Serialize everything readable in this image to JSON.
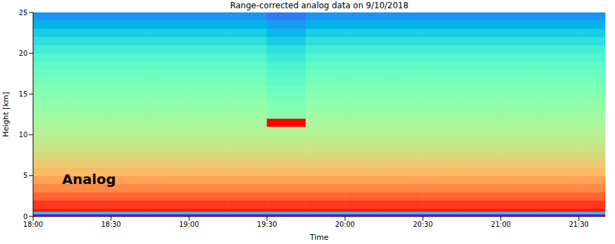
{
  "chart_data": {
    "type": "heatmap",
    "title": "Range-corrected analog data on 9/10/2018",
    "x_label": "Time",
    "y_label": "Height [km]",
    "annotation": "Analog",
    "xlim": [
      18,
      21.67
    ],
    "xticks": [
      {
        "value": 18,
        "label": "18:00"
      },
      {
        "value": 18.5,
        "label": "18:30"
      },
      {
        "value": 19,
        "label": "19:00"
      },
      {
        "value": 19.5,
        "label": "19:30"
      },
      {
        "value": 20,
        "label": "20:00"
      },
      {
        "value": 20.5,
        "label": "20:30"
      },
      {
        "value": 21,
        "label": "21:00"
      },
      {
        "value": 21.5,
        "label": "21:30"
      }
    ],
    "ylim": [
      0,
      25
    ],
    "yticks": [
      0,
      5,
      10,
      15,
      20,
      25
    ],
    "grid": false,
    "zlim": [
      0,
      1
    ],
    "x_edges": [
      18,
      18.25,
      18.5,
      18.75,
      19,
      19.25,
      19.5,
      19.75,
      20,
      20.25,
      20.5,
      20.75,
      21,
      21.25,
      21.5,
      21.67
    ],
    "y_edges": [
      0,
      0.3,
      0.6,
      1,
      2,
      3,
      4,
      5,
      6,
      7,
      8,
      9,
      10,
      11,
      12,
      13,
      14,
      15,
      16,
      17,
      18,
      19,
      20,
      21,
      22,
      23,
      24,
      25
    ],
    "cells": [
      [
        0,
        0,
        0,
        0,
        0,
        0,
        0,
        0,
        0,
        0,
        0,
        0,
        0,
        0,
        0
      ],
      [
        0.3,
        0.3,
        0.3,
        0.3,
        0.3,
        0.3,
        0.3,
        0.3,
        0.3,
        0.3,
        0.3,
        0.3,
        0.3,
        0.3,
        0.3
      ],
      [
        0.97,
        0.97,
        0.97,
        0.97,
        0.97,
        0.97,
        0.97,
        0.97,
        0.97,
        0.97,
        0.97,
        0.97,
        0.97,
        0.97,
        0.97
      ],
      [
        0.93,
        0.93,
        0.93,
        0.93,
        0.93,
        0.93,
        0.93,
        0.93,
        0.93,
        0.93,
        0.93,
        0.93,
        0.93,
        0.93,
        0.93
      ],
      [
        0.87,
        0.87,
        0.87,
        0.87,
        0.87,
        0.87,
        0.87,
        0.87,
        0.87,
        0.87,
        0.87,
        0.87,
        0.87,
        0.87,
        0.87
      ],
      [
        0.82,
        0.82,
        0.82,
        0.82,
        0.82,
        0.82,
        0.82,
        0.82,
        0.82,
        0.82,
        0.82,
        0.82,
        0.82,
        0.82,
        0.82
      ],
      [
        0.78,
        0.78,
        0.78,
        0.78,
        0.78,
        0.78,
        0.78,
        0.78,
        0.78,
        0.78,
        0.78,
        0.78,
        0.78,
        0.78,
        0.78
      ],
      [
        0.74,
        0.74,
        0.74,
        0.74,
        0.74,
        0.74,
        0.74,
        0.74,
        0.74,
        0.74,
        0.74,
        0.74,
        0.74,
        0.74,
        0.74
      ],
      [
        0.71,
        0.71,
        0.71,
        0.71,
        0.71,
        0.71,
        0.71,
        0.71,
        0.71,
        0.71,
        0.71,
        0.71,
        0.71,
        0.71,
        0.71
      ],
      [
        0.68,
        0.68,
        0.68,
        0.68,
        0.68,
        0.68,
        0.68,
        0.68,
        0.68,
        0.68,
        0.68,
        0.68,
        0.68,
        0.68,
        0.68
      ],
      [
        0.65,
        0.65,
        0.65,
        0.65,
        0.65,
        0.65,
        0.65,
        0.65,
        0.65,
        0.65,
        0.65,
        0.65,
        0.65,
        0.65,
        0.65
      ],
      [
        0.62,
        0.62,
        0.62,
        0.62,
        0.62,
        0.62,
        0.62,
        0.62,
        0.62,
        0.62,
        0.62,
        0.62,
        0.62,
        0.62,
        0.62
      ],
      [
        0.6,
        0.6,
        0.6,
        0.6,
        0.6,
        0.6,
        0.6,
        0.6,
        0.6,
        0.6,
        0.6,
        0.6,
        0.6,
        0.6,
        0.6
      ],
      [
        0.58,
        0.58,
        0.58,
        0.58,
        0.58,
        0.58,
        1,
        0.58,
        0.58,
        0.58,
        0.58,
        0.58,
        0.58,
        0.58,
        0.58
      ],
      [
        0.56,
        0.56,
        0.56,
        0.56,
        0.56,
        0.56,
        0.52,
        0.56,
        0.56,
        0.56,
        0.56,
        0.56,
        0.56,
        0.56,
        0.56
      ],
      [
        0.54,
        0.54,
        0.54,
        0.54,
        0.54,
        0.54,
        0.5,
        0.54,
        0.54,
        0.54,
        0.54,
        0.54,
        0.54,
        0.54,
        0.54
      ],
      [
        0.52,
        0.52,
        0.52,
        0.52,
        0.52,
        0.52,
        0.48,
        0.52,
        0.52,
        0.52,
        0.52,
        0.52,
        0.52,
        0.52,
        0.52
      ],
      [
        0.5,
        0.5,
        0.5,
        0.5,
        0.5,
        0.5,
        0.46,
        0.5,
        0.5,
        0.5,
        0.5,
        0.5,
        0.5,
        0.5,
        0.5
      ],
      [
        0.48,
        0.48,
        0.48,
        0.48,
        0.48,
        0.48,
        0.44,
        0.48,
        0.48,
        0.48,
        0.48,
        0.48,
        0.48,
        0.48,
        0.48
      ],
      [
        0.46,
        0.46,
        0.46,
        0.46,
        0.46,
        0.46,
        0.42,
        0.46,
        0.46,
        0.46,
        0.46,
        0.46,
        0.46,
        0.46,
        0.46
      ],
      [
        0.44,
        0.44,
        0.44,
        0.44,
        0.44,
        0.44,
        0.4,
        0.44,
        0.44,
        0.44,
        0.44,
        0.44,
        0.44,
        0.44,
        0.44
      ],
      [
        0.41,
        0.41,
        0.41,
        0.41,
        0.41,
        0.41,
        0.37,
        0.41,
        0.41,
        0.41,
        0.41,
        0.41,
        0.41,
        0.41,
        0.41
      ],
      [
        0.38,
        0.38,
        0.38,
        0.38,
        0.38,
        0.38,
        0.34,
        0.38,
        0.38,
        0.38,
        0.38,
        0.38,
        0.38,
        0.38,
        0.38
      ],
      [
        0.34,
        0.34,
        0.34,
        0.34,
        0.34,
        0.34,
        0.3,
        0.34,
        0.34,
        0.34,
        0.34,
        0.34,
        0.34,
        0.34,
        0.34
      ],
      [
        0.3,
        0.3,
        0.3,
        0.3,
        0.3,
        0.3,
        0.26,
        0.3,
        0.3,
        0.3,
        0.3,
        0.3,
        0.3,
        0.3,
        0.3
      ],
      [
        0.25,
        0.25,
        0.25,
        0.25,
        0.25,
        0.25,
        0.21,
        0.25,
        0.25,
        0.25,
        0.25,
        0.25,
        0.25,
        0.25,
        0.25
      ],
      [
        0.2,
        0.2,
        0.2,
        0.2,
        0.2,
        0.2,
        0.16,
        0.2,
        0.2,
        0.2,
        0.2,
        0.2,
        0.2,
        0.2,
        0.2
      ]
    ]
  }
}
